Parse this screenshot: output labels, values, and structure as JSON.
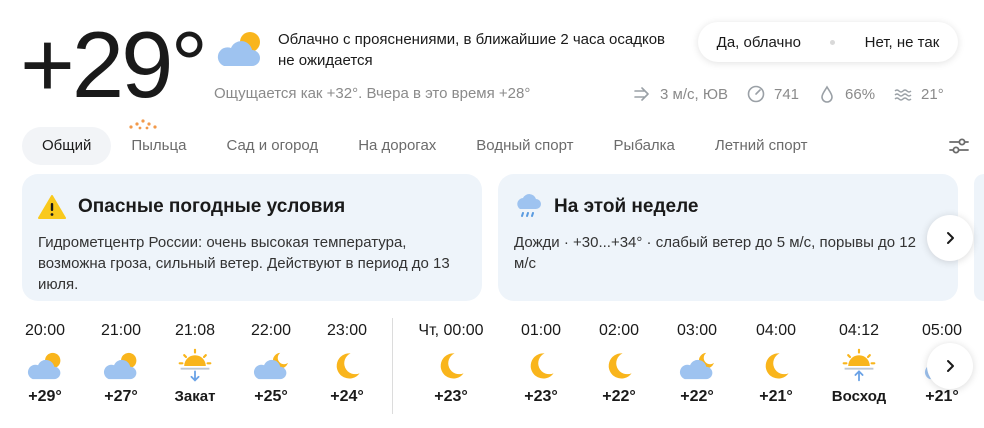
{
  "current": {
    "temperature": "+29°",
    "condition_icon": "partly-cloudy-day",
    "condition": "Облачно с прояснениями, в ближайшие 2 часа осадков не ожидается",
    "feels": "Ощущается как +32°. Вчера в это время +28°"
  },
  "feedback": {
    "yes": "Да, облачно",
    "no": "Нет, не так"
  },
  "metrics": {
    "wind": "3 м/с, ЮВ",
    "pressure": "741",
    "humidity": "66%",
    "water": "21°"
  },
  "tabs": [
    "Общий",
    "Пыльца",
    "Сад и огород",
    "На дорогах",
    "Водный спорт",
    "Рыбалка",
    "Летний спорт"
  ],
  "cards": {
    "warning": {
      "title": "Опасные погодные условия",
      "body": "Гидрометцентр России: очень высокая температура, возможна гроза, сильный ветер. Действуют в период до 13 июля."
    },
    "week": {
      "title": "На этой неделе",
      "body": "Дожди · +30...+34° · слабый ветер до 5 м/с, порывы до 12 м/с"
    }
  },
  "hourly": [
    {
      "time": "20:00",
      "icon": "partly-cloudy-day",
      "value": "+29°"
    },
    {
      "time": "21:00",
      "icon": "partly-cloudy-day",
      "value": "+27°"
    },
    {
      "time": "21:08",
      "icon": "sunset",
      "value": "Закат"
    },
    {
      "time": "22:00",
      "icon": "partly-cloudy-night",
      "value": "+25°"
    },
    {
      "time": "23:00",
      "icon": "moon",
      "value": "+24°"
    },
    {
      "time": "Чт, 00:00",
      "icon": "moon",
      "value": "+23°"
    },
    {
      "time": "01:00",
      "icon": "moon",
      "value": "+23°"
    },
    {
      "time": "02:00",
      "icon": "moon",
      "value": "+22°"
    },
    {
      "time": "03:00",
      "icon": "partly-cloudy-night",
      "value": "+22°"
    },
    {
      "time": "04:00",
      "icon": "moon",
      "value": "+21°"
    },
    {
      "time": "04:12",
      "icon": "sunrise",
      "value": "Восход"
    },
    {
      "time": "05:00",
      "icon": "partly-cloudy-day",
      "value": "+21°"
    }
  ],
  "colors": {
    "sun": "#f9b51c",
    "cloud": "#9ec3f0",
    "card_bg": "#eef4fa",
    "muted": "#8a8a8a",
    "pollen": "#f2994a"
  }
}
